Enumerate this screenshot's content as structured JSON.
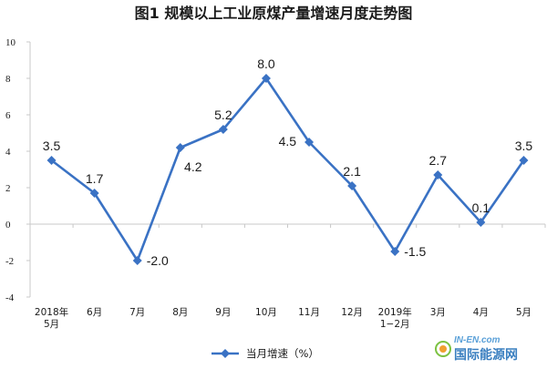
{
  "colors": {
    "series": "#3a72c4",
    "axis": "#c8c8c8",
    "text": "#1a1a1a",
    "logo_blue": "#3a7fc0",
    "logo_green": "#7cc242",
    "logo_orange": "#f0a030"
  },
  "chart_data": {
    "type": "line",
    "title": "图1  规模以上工业原煤产量增速月度走势图",
    "xlabel": "",
    "ylabel": "",
    "ylim": [
      -4,
      10
    ],
    "yticks": [
      -4,
      -2,
      0,
      2,
      4,
      6,
      8,
      10
    ],
    "yticks_labels": [
      "-4",
      "-2",
      "0",
      "2",
      "4",
      "6",
      "8",
      "10"
    ],
    "grid": false,
    "legend_position": "bottom-center",
    "categories": [
      [
        "2018年",
        "5月"
      ],
      [
        "6月"
      ],
      [
        "7月"
      ],
      [
        "8月"
      ],
      [
        "9月"
      ],
      [
        "10月"
      ],
      [
        "11月"
      ],
      [
        "12月"
      ],
      [
        "2019年",
        "1−2月"
      ],
      [
        "3月"
      ],
      [
        "4月"
      ],
      [
        "5月"
      ]
    ],
    "series": [
      {
        "name": "当月增速（%）",
        "values": [
          3.5,
          1.7,
          -2.0,
          4.2,
          5.2,
          8.0,
          4.5,
          2.1,
          -1.5,
          2.7,
          0.1,
          3.5
        ],
        "labels": [
          "3.5",
          "1.7",
          "-2.0",
          "4.2",
          "5.2",
          "8.0",
          "4.5",
          "2.1",
          "-1.5",
          "2.7",
          "0.1",
          "3.5"
        ],
        "label_positions": [
          "above",
          "above",
          "right",
          "below",
          "above",
          "above",
          "left",
          "above",
          "right",
          "above",
          "above",
          "above"
        ],
        "marker": "diamond-icon"
      }
    ]
  },
  "watermark": {
    "top_text": "IN-EN.com",
    "bottom_text": "国际能源网"
  }
}
